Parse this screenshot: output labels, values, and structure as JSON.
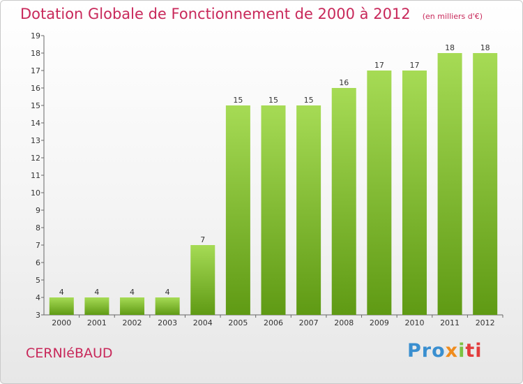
{
  "header": {
    "title": "Dotation Globale de Fonctionnement de 2000 à 2012",
    "subtitle": "(en milliers d'€)"
  },
  "footer": {
    "commune": "CERNIéBAUD",
    "brand": {
      "p": "Pro",
      "x": "x",
      "i": "i",
      "t": "ti"
    }
  },
  "colors": {
    "bar": "#7dbb2e",
    "bar_light": "#a6db55",
    "bar_dark": "#5f9a14",
    "title": "#c8285a"
  },
  "chart_data": {
    "type": "bar",
    "categories": [
      "2000",
      "2001",
      "2002",
      "2003",
      "2004",
      "2005",
      "2006",
      "2007",
      "2008",
      "2009",
      "2010",
      "2011",
      "2012"
    ],
    "values": [
      4,
      4,
      4,
      4,
      7,
      15,
      15,
      15,
      16,
      17,
      17,
      18,
      18
    ],
    "title": "Dotation Globale de Fonctionnement de 2000 à 2012",
    "subtitle": "(en milliers d'€)",
    "ylim": [
      3,
      19
    ],
    "yticks": [
      3,
      4,
      5,
      6,
      7,
      8,
      9,
      10,
      11,
      12,
      13,
      14,
      15,
      16,
      17,
      18,
      19
    ],
    "grid": false,
    "legend": "none"
  }
}
